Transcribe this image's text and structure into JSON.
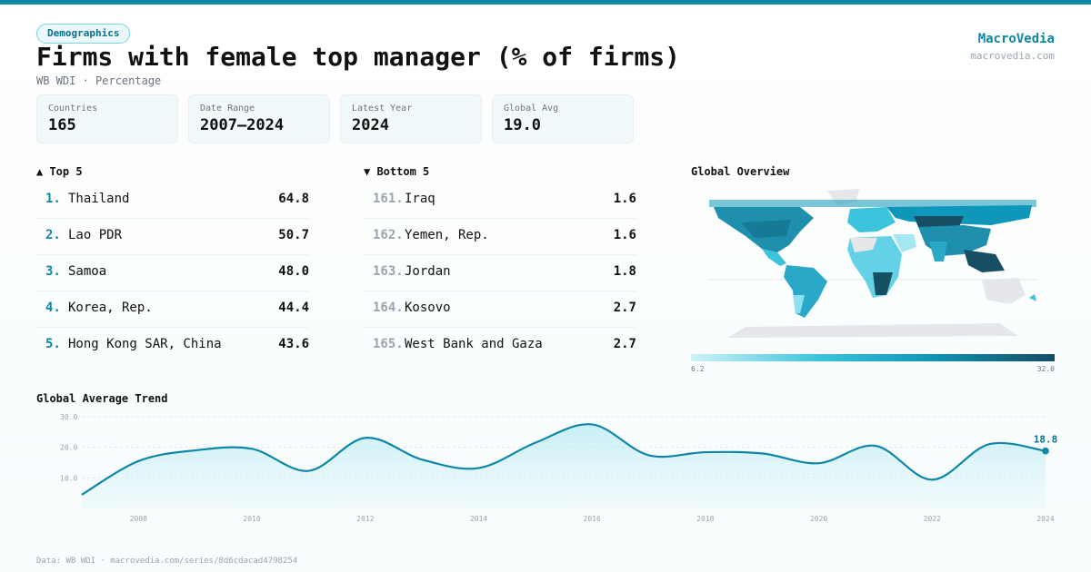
{
  "header": {
    "tag": "Demographics",
    "title": "Firms with female top manager (% of firms)",
    "subtitle": "WB WDI · Percentage",
    "brand": "MacroVedia",
    "brand_url": "macrovedia.com"
  },
  "stats": [
    {
      "label": "Countries",
      "value": "165"
    },
    {
      "label": "Date Range",
      "value": "2007–2024"
    },
    {
      "label": "Latest Year",
      "value": "2024"
    },
    {
      "label": "Global Avg",
      "value": "19.0"
    }
  ],
  "top5": {
    "heading": "▲ Top 5",
    "items": [
      {
        "rank": "1.",
        "name": "Thailand",
        "value": "64.8"
      },
      {
        "rank": "2.",
        "name": "Lao PDR",
        "value": "50.7"
      },
      {
        "rank": "3.",
        "name": "Samoa",
        "value": "48.0"
      },
      {
        "rank": "4.",
        "name": "Korea, Rep.",
        "value": "44.4"
      },
      {
        "rank": "5.",
        "name": "Hong Kong SAR, China",
        "value": "43.6"
      }
    ]
  },
  "bottom5": {
    "heading": "▼ Bottom 5",
    "items": [
      {
        "rank": "161.",
        "name": "Iraq",
        "value": "1.6"
      },
      {
        "rank": "162.",
        "name": "Yemen, Rep.",
        "value": "1.6"
      },
      {
        "rank": "163.",
        "name": "Jordan",
        "value": "1.8"
      },
      {
        "rank": "164.",
        "name": "Kosovo",
        "value": "2.7"
      },
      {
        "rank": "165.",
        "name": "West Bank and Gaza",
        "value": "2.7"
      }
    ]
  },
  "map": {
    "title": "Global Overview",
    "legend_min": "6.2",
    "legend_max": "32.0",
    "colors": {
      "low": "#cff2f8",
      "mid": "#0e97b8",
      "high": "#164e63",
      "nodata": "#e5e7eb"
    }
  },
  "trend": {
    "title": "Global Average Trend",
    "last_label": "18.8"
  },
  "footer": "Data: WB WDI · macrovedia.com/series/8d6cdacad4798254",
  "chart_data": {
    "type": "area",
    "title": "Global Average Trend",
    "x": [
      2007,
      2008,
      2009,
      2010,
      2011,
      2012,
      2013,
      2014,
      2015,
      2016,
      2017,
      2018,
      2019,
      2020,
      2021,
      2022,
      2023,
      2024
    ],
    "values": [
      4.5,
      15.5,
      19.0,
      19.5,
      12.3,
      23.1,
      16.0,
      13.2,
      21.5,
      27.5,
      17.4,
      18.4,
      18.0,
      14.8,
      20.5,
      9.4,
      21.0,
      18.8
    ],
    "ylim": [
      0,
      30
    ],
    "yticks": [
      "10.0",
      "20.0",
      "30.0"
    ],
    "xticks": [
      "2008",
      "2010",
      "2012",
      "2014",
      "2016",
      "2018",
      "2020",
      "2022",
      "2024"
    ],
    "grid": true,
    "color": "#0e86a6"
  }
}
